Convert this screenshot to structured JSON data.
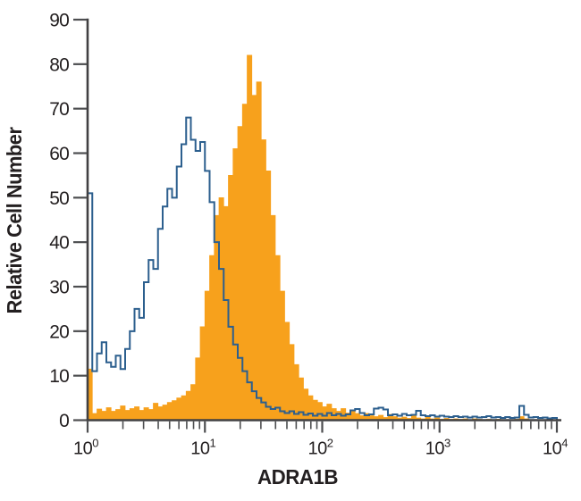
{
  "chart_data": {
    "type": "area",
    "subtype": "flow-cytometry-histogram-overlay",
    "title": "",
    "xlabel": "ADRA1B",
    "ylabel": "Relative Cell Number",
    "x_scale": "log10",
    "x_range_exponents": [
      0,
      4
    ],
    "x_tick_exponents": [
      0,
      1,
      2,
      3,
      4
    ],
    "x_tick_base": "10",
    "x_minor_tick_multiples": [
      2,
      3,
      4,
      5,
      6,
      7,
      8,
      9
    ],
    "ylim": [
      0,
      90
    ],
    "y_ticks": [
      0,
      10,
      20,
      30,
      40,
      50,
      60,
      70,
      80,
      90
    ],
    "grid": false,
    "legend": null,
    "bins_per_decade": 25,
    "axis_color": "#414042",
    "tick_color": "#4d4e50",
    "text_color": "#231f20",
    "series": [
      {
        "name": "filled-stained-histogram",
        "style": "filled",
        "color": "#F7A11C",
        "peak_x": 23,
        "peak_y": 82,
        "values": [
          11.5,
          1.5,
          2.5,
          2,
          2.8,
          2,
          2.4,
          3.2,
          2.2,
          2.6,
          3,
          2.2,
          2.8,
          2.4,
          3.8,
          3,
          3.4,
          4,
          4.4,
          5,
          5.5,
          6.5,
          8,
          14,
          21,
          29,
          37,
          46,
          50,
          48,
          55,
          61,
          66,
          71,
          82,
          73,
          76,
          63,
          56,
          46,
          37,
          29,
          22,
          17,
          12.5,
          9.5,
          7,
          5.5,
          4.5,
          4,
          3,
          3.6,
          2.6,
          2,
          2.6,
          1.6,
          2,
          1.5,
          1,
          1.5,
          1,
          0.8,
          1.1,
          0.6,
          1.3,
          0.8,
          0.5,
          0.7,
          0.4,
          1.3,
          0.5,
          0.3,
          0.9,
          0.3,
          0.5,
          0.2,
          0.4,
          0.2,
          0.3,
          0.2,
          0.3,
          0.1,
          0.3,
          0.2,
          0.1,
          0.2,
          0.1,
          0.2,
          0.1,
          0.1,
          0.1,
          0.2,
          0.8,
          0.3,
          0.1,
          0.1,
          0.1,
          0,
          0,
          0
        ]
      },
      {
        "name": "open-control-histogram",
        "style": "open-step",
        "color": "#2C5F8E",
        "peak_x": 7,
        "peak_y": 68,
        "values": [
          51,
          11,
          15,
          17.5,
          13,
          12,
          14.5,
          11.5,
          16,
          20,
          25,
          23,
          31,
          36,
          34,
          43,
          48,
          52,
          50,
          57,
          62,
          68,
          63,
          60.5,
          62.5,
          56,
          49,
          40,
          34,
          27,
          21,
          17,
          14,
          11,
          8.5,
          6.5,
          5,
          4,
          3,
          2.5,
          2.8,
          2,
          1.6,
          2,
          1.4,
          1.8,
          1.2,
          1.5,
          1,
          1.4,
          1,
          1.6,
          1.1,
          1.4,
          1,
          1.3,
          2.2,
          2.5,
          1.6,
          1.1,
          1.3,
          2.6,
          2.8,
          2.4,
          1.1,
          1.3,
          1,
          1.4,
          1.1,
          1.2,
          2.1,
          1.1,
          0.9,
          1.1,
          0.8,
          1,
          0.8,
          0.7,
          0.9,
          0.7,
          0.8,
          0.6,
          0.8,
          0.6,
          0.7,
          0.9,
          0.6,
          0.7,
          0.5,
          0.7,
          0.5,
          0.6,
          3.2,
          1.2,
          0.6,
          0.7,
          0.5,
          0.6,
          0.4,
          0.5
        ]
      }
    ]
  }
}
